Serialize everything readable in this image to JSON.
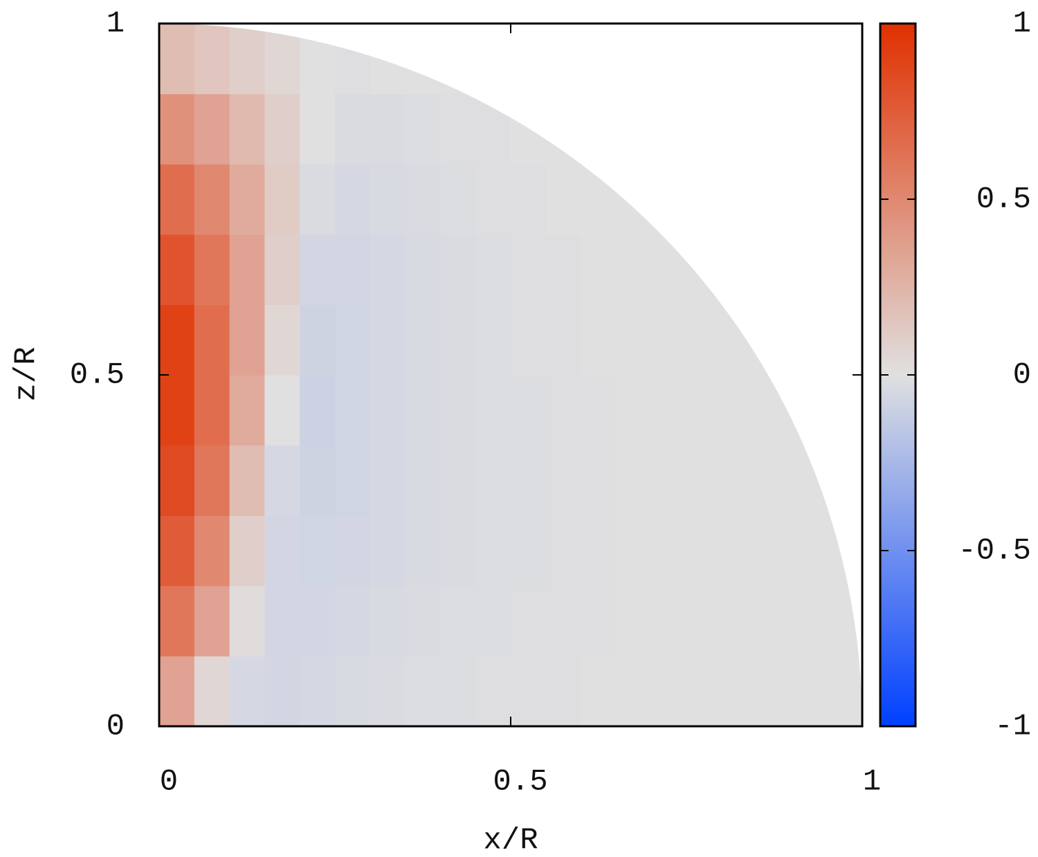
{
  "chart_data": {
    "type": "heatmap",
    "xlabel": "x/R",
    "ylabel": "z/R",
    "xlim": [
      0,
      1
    ],
    "ylim": [
      0,
      1
    ],
    "xticks": [
      0,
      0.5,
      1
    ],
    "yticks": [
      0,
      0.5,
      1
    ],
    "xbins": [
      0,
      0.05,
      0.1,
      0.15,
      0.2,
      0.25,
      0.3,
      0.35,
      0.4,
      0.45,
      0.5,
      0.55,
      0.6,
      0.65,
      0.7,
      0.75,
      0.8,
      0.85,
      0.9,
      0.95,
      1
    ],
    "ybins": [
      0,
      0.1,
      0.2,
      0.3,
      0.4,
      0.5,
      0.6,
      0.7,
      0.8,
      0.9,
      1
    ],
    "z": [
      [
        0.35,
        0.05,
        -0.05,
        -0.06,
        -0.05,
        -0.04,
        -0.03,
        -0.02,
        -0.02,
        -0.01,
        -0.01,
        -0.01,
        0,
        0,
        0,
        0,
        0,
        0,
        0,
        0
      ],
      [
        0.6,
        0.35,
        0.02,
        -0.06,
        -0.06,
        -0.05,
        -0.04,
        -0.03,
        -0.02,
        -0.02,
        -0.01,
        -0.01,
        -0.01,
        0,
        0,
        0,
        0,
        0,
        0,
        0
      ],
      [
        0.75,
        0.5,
        0.1,
        -0.06,
        -0.07,
        -0.06,
        -0.05,
        -0.04,
        -0.03,
        -0.02,
        -0.02,
        -0.01,
        -0.01,
        0,
        0,
        0,
        0,
        0,
        0,
        0
      ],
      [
        0.85,
        0.6,
        0.2,
        -0.05,
        -0.08,
        -0.07,
        -0.05,
        -0.04,
        -0.03,
        -0.02,
        -0.02,
        -0.01,
        -0.01,
        0,
        0,
        0,
        0,
        0,
        0,
        0
      ],
      [
        0.9,
        0.65,
        0.3,
        0.0,
        -0.09,
        -0.07,
        -0.05,
        -0.04,
        -0.03,
        -0.02,
        -0.02,
        -0.01,
        -0.01,
        0,
        0,
        0,
        0,
        0,
        0,
        null
      ],
      [
        0.9,
        0.65,
        0.35,
        0.05,
        -0.08,
        -0.07,
        -0.05,
        -0.04,
        -0.03,
        -0.02,
        -0.01,
        -0.01,
        0,
        0,
        0,
        0,
        0,
        0,
        null,
        null
      ],
      [
        0.8,
        0.6,
        0.35,
        0.1,
        -0.06,
        -0.06,
        -0.05,
        -0.04,
        -0.03,
        -0.02,
        -0.01,
        -0.01,
        0,
        0,
        0,
        0,
        null,
        null,
        null,
        null
      ],
      [
        0.65,
        0.5,
        0.3,
        0.12,
        -0.03,
        -0.05,
        -0.04,
        -0.03,
        -0.02,
        -0.01,
        -0.01,
        0,
        0,
        0,
        0,
        null,
        null,
        null,
        null,
        null
      ],
      [
        0.45,
        0.35,
        0.22,
        0.1,
        0.0,
        -0.03,
        -0.03,
        -0.02,
        -0.01,
        -0.01,
        0,
        0,
        null,
        null,
        null,
        null,
        null,
        null,
        null,
        null
      ],
      [
        0.2,
        0.15,
        0.1,
        0.05,
        0.0,
        -0.01,
        0,
        0,
        0,
        null,
        null,
        null,
        null,
        null,
        null,
        null,
        null,
        null,
        null,
        null
      ]
    ],
    "colormap": [
      "#0040ff",
      "#e0e0e0",
      "#e03000"
    ],
    "clim": [
      -1,
      1
    ],
    "cticks": [
      -1,
      -0.5,
      0,
      0.5,
      1
    ]
  }
}
